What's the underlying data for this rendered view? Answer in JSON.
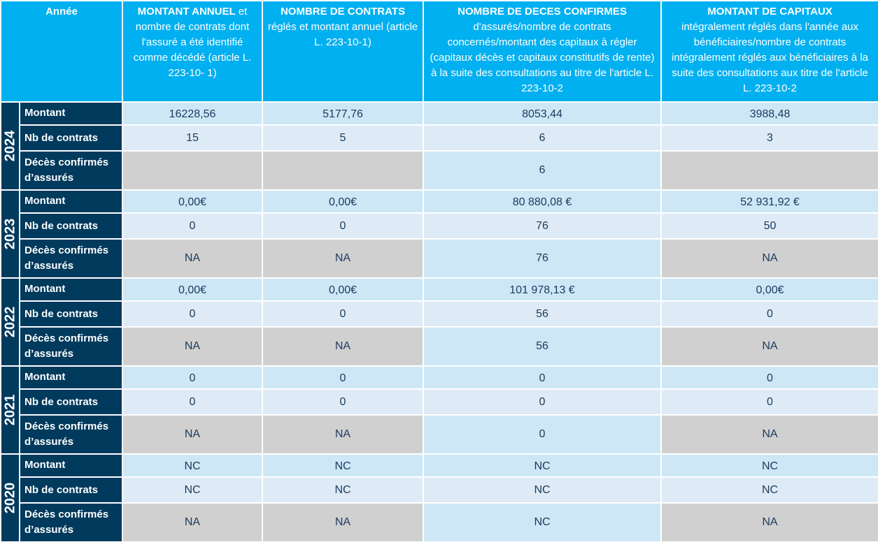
{
  "header": {
    "year": "Année",
    "col1_bold": "MONTANT ANNUEL",
    "col1_text": " et nombre de contrats dont l'assuré a été identifié comme décédé (article L. 223-10- 1)",
    "col2_bold": "NOMBRE DE CONTRATS",
    "col2_text": "réglés et montant annuel (article L. 223-10-1)",
    "col3_bold": "NOMBRE DE DECES CONFIRMES",
    "col3_text": "d'assurés/nombre de contrats concernés/montant des capitaux à régler (capitaux décès et capitaux constitutifs de rente) à la suite des consultations au titre de l'article L. 223-10-2",
    "col4_bold": "MONTANT DE CAPITAUX",
    "col4_text": "intégralement réglés dans l'année aux bénéficiaires/nombre de contrats intégralement réglés aux bénéficiaires à la suite des consultations aux titre de l'article L. 223-10-2"
  },
  "row_labels": {
    "montant": "Montant",
    "nb": "Nb de contrats",
    "deces": "Décès confirmés d’assurés"
  },
  "years": [
    {
      "year": "2024",
      "montant": [
        "16228,56",
        "5177,76",
        "8053,44",
        "3988,48"
      ],
      "nb": [
        "15",
        "5",
        "6",
        "3"
      ],
      "deces": [
        "",
        "",
        "6",
        ""
      ]
    },
    {
      "year": "2023",
      "montant": [
        "0,00€",
        "0,00€",
        "80 880,08 €",
        "52 931,92 €"
      ],
      "nb": [
        "0",
        "0",
        "76",
        "50"
      ],
      "deces": [
        "NA",
        "NA",
        "76",
        "NA"
      ]
    },
    {
      "year": "2022",
      "montant": [
        "0,00€",
        "0,00€",
        "101 978,13 €",
        "0,00€"
      ],
      "nb": [
        "0",
        "0",
        "56",
        "0"
      ],
      "deces": [
        "NA",
        "NA",
        "56",
        "NA"
      ]
    },
    {
      "year": "2021",
      "montant": [
        "0",
        "0",
        "0",
        "0"
      ],
      "nb": [
        "0",
        "0",
        "0",
        "0"
      ],
      "deces": [
        "NA",
        "NA",
        "0",
        "NA"
      ]
    },
    {
      "year": "2020",
      "montant": [
        "NC",
        "NC",
        "NC",
        "NC"
      ],
      "nb": [
        "NC",
        "NC",
        "NC",
        "NC"
      ],
      "deces": [
        "NA",
        "NA",
        "NC",
        "NA"
      ]
    }
  ],
  "colors": {
    "header": "#00b0f0",
    "navy": "#003a5d",
    "row_light": "#cde7f7",
    "row_mid": "#deebf6",
    "gray": "#d0d0d0"
  }
}
